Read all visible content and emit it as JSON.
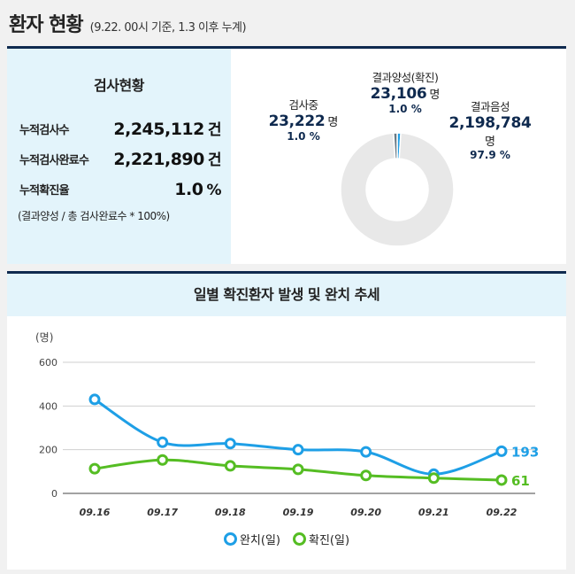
{
  "header": {
    "title": "환자 현황",
    "subtitle": "(9.22. 00시 기준, 1.3 이후 누계)"
  },
  "test_status": {
    "title": "검사현황",
    "rows": [
      {
        "label": "누적검사수",
        "value": "2,245,112",
        "unit": "건"
      },
      {
        "label": "누적검사완료수",
        "value": "2,221,890",
        "unit": "건"
      },
      {
        "label": "누적확진율",
        "value": "1.0",
        "unit": "%"
      }
    ],
    "note": "(결과양성 / 총 검사완료수 * 100%)"
  },
  "donut": {
    "colors": {
      "positive": "#1e9fe6",
      "negative": "#e8e8e8",
      "testing": "#697a85"
    },
    "positive": {
      "name": "결과양성(확진)",
      "count": "23,106",
      "unit": "명",
      "pct": "1.0 %",
      "value": 23106
    },
    "testing": {
      "name": "검사중",
      "count": "23,222",
      "unit": "명",
      "pct": "1.0 %",
      "value": 23222
    },
    "negative": {
      "name": "결과음성",
      "count": "2,198,784",
      "unit": "명",
      "pct": "97.9 %",
      "value": 2198784
    }
  },
  "trend": {
    "title": "일별 확진환자 발생 및 완치 추세"
  },
  "chart_data": {
    "type": "line",
    "title": "일별 확진환자 발생 및 완치 추세",
    "ylabel": "(명)",
    "ylim": [
      0,
      600
    ],
    "yticks": [
      "0",
      "200",
      "400",
      "600"
    ],
    "categories": [
      "09.16",
      "09.17",
      "09.18",
      "09.19",
      "09.20",
      "09.21",
      "09.22"
    ],
    "series": [
      {
        "name": "완치(일)",
        "color": "#1e9fe6",
        "values": [
          430,
          234,
          228,
          200,
          190,
          88,
          193
        ],
        "end_label": "193"
      },
      {
        "name": "확진(일)",
        "color": "#55bd23",
        "values": [
          113,
          153,
          126,
          110,
          82,
          70,
          61
        ],
        "end_label": "61"
      }
    ],
    "grid": true,
    "legend": "bottom"
  }
}
